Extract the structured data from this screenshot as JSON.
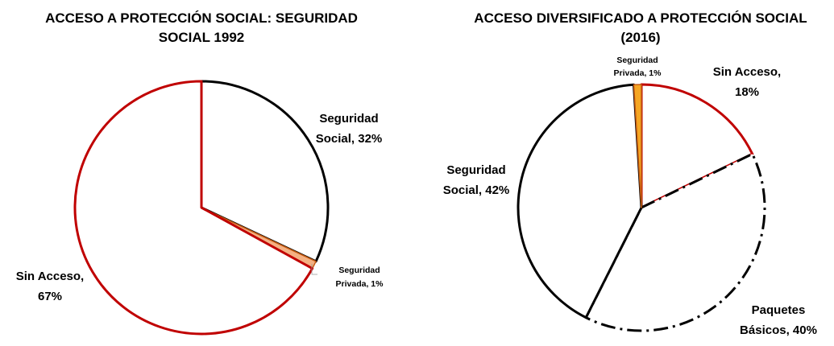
{
  "chart_data": [
    {
      "type": "pie",
      "title": [
        "ACCESO A PROTECCIÓN SOCIAL: SEGURIDAD",
        "SOCIAL 1992"
      ],
      "start_angle_deg": 0,
      "slices": [
        {
          "label": [
            "Seguridad",
            "Social, 32%"
          ],
          "value": 32,
          "fill": "#ffffff",
          "stroke": "#000000",
          "dash": ""
        },
        {
          "label": [
            "Seguridad",
            "Privada, 1%"
          ],
          "value": 1,
          "fill": "#f4b183",
          "stroke": "#c55a11",
          "dash": ""
        },
        {
          "label": [
            "Sin Acceso,",
            "67%"
          ],
          "value": 67,
          "fill": "#ffffff",
          "stroke": "#c00000",
          "dash": ""
        }
      ]
    },
    {
      "type": "pie",
      "title": [
        "ACCESO DIVERSIFICADO A PROTECCIÓN SOCIAL",
        "(2016)"
      ],
      "start_angle_deg": 0,
      "slices": [
        {
          "label": [
            "Sin Acceso,",
            "18%"
          ],
          "value": 18,
          "fill": "#ffffff",
          "stroke": "#c00000",
          "dash": ""
        },
        {
          "label": [
            "Paquetes",
            "Básicos, 40%"
          ],
          "value": 40,
          "fill": "#ffffff",
          "stroke": "#000000",
          "dash": "18 6 3 6"
        },
        {
          "label": [
            "Seguridad",
            "Social, 42%"
          ],
          "value": 42,
          "fill": "#ffffff",
          "stroke": "#000000",
          "dash": ""
        },
        {
          "label": [
            "Seguridad",
            "Privada, 1%"
          ],
          "value": 1,
          "fill": "#f5a623",
          "stroke": "#c55a11",
          "dash": ""
        }
      ]
    }
  ]
}
